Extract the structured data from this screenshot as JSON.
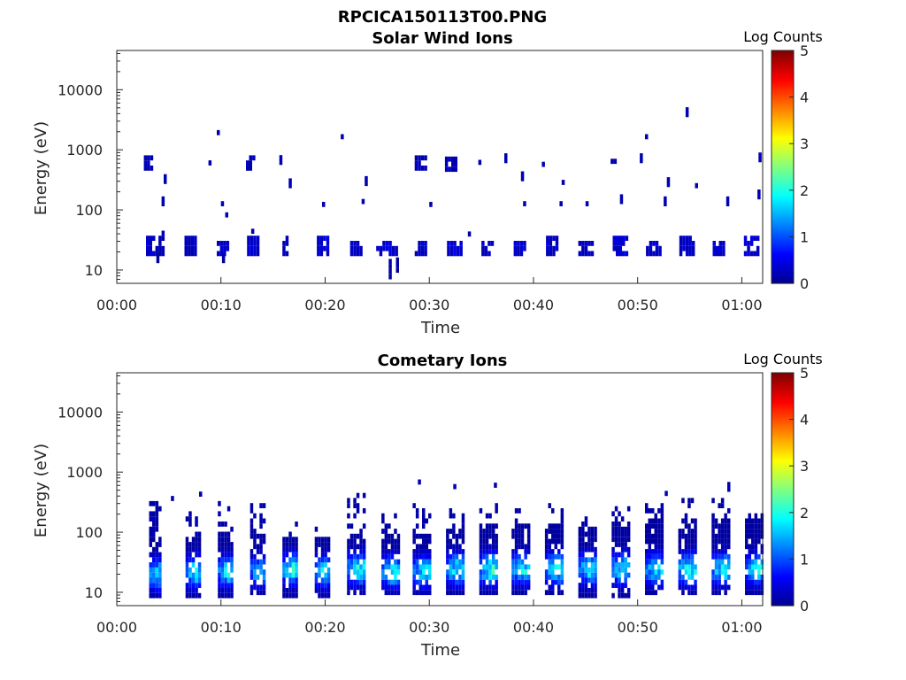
{
  "figure": {
    "title": "RPCICA150113T00.PNG"
  },
  "colorbar": {
    "colormap": "jet",
    "colors": [
      "#00008f",
      "#0000ff",
      "#0080ff",
      "#00ffff",
      "#80ff80",
      "#ffff00",
      "#ff8000",
      "#ff0000",
      "#800000"
    ]
  },
  "chart_data": [
    {
      "type": "heatmap",
      "title": "Solar Wind Ions",
      "xlabel": "Time",
      "ylabel": "Energy (eV)",
      "y_scale": "log",
      "xlim": [
        "00:00",
        "01:02"
      ],
      "ylim": [
        6,
        45000
      ],
      "x_ticks": [
        "00:00",
        "00:10",
        "00:20",
        "00:30",
        "00:40",
        "00:50",
        "01:00"
      ],
      "y_ticks": [
        "10",
        "100",
        "1000",
        "10000"
      ],
      "colorbar_label": "Log Counts",
      "colorbar_ticks": [
        "0",
        "1",
        "2",
        "3",
        "4",
        "5"
      ],
      "color_range": [
        0,
        5
      ],
      "patches": [
        {
          "t": 2.8,
          "dt": 0.9,
          "e_min": 17,
          "e_max": 32,
          "log_counts": 0.3
        },
        {
          "t": 4.0,
          "dt": 0.5,
          "e_min": 17,
          "e_max": 38,
          "log_counts": 0.2
        },
        {
          "t": 3.8,
          "dt": 0.3,
          "e_min": 13,
          "e_max": 17,
          "log_counts": 0.1
        },
        {
          "t": 6.5,
          "dt": 0.9,
          "e_min": 17,
          "e_max": 32,
          "log_counts": 0.25
        },
        {
          "t": 9.6,
          "dt": 1.0,
          "e_min": 17,
          "e_max": 30,
          "log_counts": 0.3
        },
        {
          "t": 10.1,
          "dt": 0.3,
          "e_min": 13,
          "e_max": 17,
          "log_counts": 0.1
        },
        {
          "t": 12.5,
          "dt": 1.2,
          "e_min": 17,
          "e_max": 32,
          "log_counts": 0.3
        },
        {
          "t": 15.9,
          "dt": 0.6,
          "e_min": 17,
          "e_max": 32,
          "log_counts": 0.25
        },
        {
          "t": 19.2,
          "dt": 1.2,
          "e_min": 17,
          "e_max": 32,
          "log_counts": 0.35
        },
        {
          "t": 22.4,
          "dt": 1.2,
          "e_min": 17,
          "e_max": 30,
          "log_counts": 0.3
        },
        {
          "t": 24.9,
          "dt": 1.9,
          "e_min": 17,
          "e_max": 30,
          "log_counts": 0.35
        },
        {
          "t": 26.1,
          "dt": 0.2,
          "e_min": 7,
          "e_max": 14,
          "log_counts": 0.1
        },
        {
          "t": 26.8,
          "dt": 0.2,
          "e_min": 9,
          "e_max": 14,
          "log_counts": 0.1
        },
        {
          "t": 28.6,
          "dt": 1.1,
          "e_min": 17,
          "e_max": 30,
          "log_counts": 0.3
        },
        {
          "t": 31.7,
          "dt": 1.2,
          "e_min": 17,
          "e_max": 30,
          "log_counts": 0.35
        },
        {
          "t": 35.0,
          "dt": 0.9,
          "e_min": 17,
          "e_max": 30,
          "log_counts": 0.3
        },
        {
          "t": 38.1,
          "dt": 1.1,
          "e_min": 17,
          "e_max": 30,
          "log_counts": 0.3
        },
        {
          "t": 41.2,
          "dt": 1.1,
          "e_min": 17,
          "e_max": 32,
          "log_counts": 0.3
        },
        {
          "t": 44.3,
          "dt": 1.2,
          "e_min": 17,
          "e_max": 30,
          "log_counts": 0.3
        },
        {
          "t": 47.6,
          "dt": 1.3,
          "e_min": 17,
          "e_max": 32,
          "log_counts": 0.35
        },
        {
          "t": 50.8,
          "dt": 1.2,
          "e_min": 17,
          "e_max": 30,
          "log_counts": 0.3
        },
        {
          "t": 54.0,
          "dt": 1.2,
          "e_min": 17,
          "e_max": 32,
          "log_counts": 0.3
        },
        {
          "t": 57.2,
          "dt": 1.1,
          "e_min": 17,
          "e_max": 30,
          "log_counts": 0.3
        },
        {
          "t": 60.2,
          "dt": 1.4,
          "e_min": 17,
          "e_max": 32,
          "log_counts": 0.35
        },
        {
          "t": 2.6,
          "dt": 0.8,
          "e_min": 450,
          "e_max": 700,
          "log_counts": 0.2
        },
        {
          "t": 12.4,
          "dt": 0.9,
          "e_min": 450,
          "e_max": 700,
          "log_counts": 0.2
        },
        {
          "t": 28.6,
          "dt": 1.0,
          "e_min": 450,
          "e_max": 800,
          "log_counts": 0.2
        },
        {
          "t": 31.5,
          "dt": 1.0,
          "e_min": 430,
          "e_max": 650,
          "log_counts": 0.2
        },
        {
          "t": 47.4,
          "dt": 0.5,
          "e_min": 480,
          "e_max": 650,
          "log_counts": 0.15
        }
      ],
      "sparse_points": [
        {
          "t": 9.6,
          "e": 1750,
          "log_counts": 0.2
        },
        {
          "t": 21.5,
          "e": 1500,
          "log_counts": 0.2
        },
        {
          "t": 50.7,
          "e": 1500,
          "log_counts": 0.2
        },
        {
          "t": 54.6,
          "e": 3500,
          "log_counts": 0.2
        },
        {
          "t": 4.5,
          "e": 270,
          "log_counts": 0.2
        },
        {
          "t": 16.5,
          "e": 230,
          "log_counts": 0.2
        },
        {
          "t": 23.8,
          "e": 250,
          "log_counts": 0.2
        },
        {
          "t": 38.8,
          "e": 300,
          "log_counts": 0.2
        },
        {
          "t": 42.7,
          "e": 260,
          "log_counts": 0.2
        },
        {
          "t": 52.8,
          "e": 240,
          "log_counts": 0.2
        },
        {
          "t": 55.5,
          "e": 230,
          "log_counts": 0.2
        },
        {
          "t": 4.3,
          "e": 115,
          "log_counts": 0.2
        },
        {
          "t": 10.0,
          "e": 115,
          "log_counts": 0.2
        },
        {
          "t": 19.7,
          "e": 112,
          "log_counts": 0.2
        },
        {
          "t": 23.5,
          "e": 125,
          "log_counts": 0.2
        },
        {
          "t": 30.0,
          "e": 112,
          "log_counts": 0.2
        },
        {
          "t": 39.0,
          "e": 115,
          "log_counts": 0.2
        },
        {
          "t": 42.5,
          "e": 115,
          "log_counts": 0.2
        },
        {
          "t": 45.0,
          "e": 115,
          "log_counts": 0.2
        },
        {
          "t": 48.3,
          "e": 125,
          "log_counts": 0.2
        },
        {
          "t": 52.5,
          "e": 115,
          "log_counts": 0.2
        },
        {
          "t": 58.5,
          "e": 115,
          "log_counts": 0.2
        },
        {
          "t": 61.5,
          "e": 150,
          "log_counts": 0.2
        },
        {
          "t": 61.6,
          "e": 620,
          "log_counts": 0.2
        },
        {
          "t": 8.8,
          "e": 550,
          "log_counts": 0.2
        },
        {
          "t": 15.6,
          "e": 560,
          "log_counts": 0.2
        },
        {
          "t": 34.7,
          "e": 560,
          "log_counts": 0.2
        },
        {
          "t": 37.2,
          "e": 600,
          "log_counts": 0.2
        },
        {
          "t": 40.8,
          "e": 520,
          "log_counts": 0.2
        },
        {
          "t": 50.2,
          "e": 600,
          "log_counts": 0.2
        },
        {
          "t": 10.4,
          "e": 75,
          "log_counts": 0.2
        },
        {
          "t": 12.9,
          "e": 40,
          "log_counts": 0.2
        },
        {
          "t": 33.7,
          "e": 36,
          "log_counts": 0.2
        }
      ]
    },
    {
      "type": "heatmap",
      "title": "Cometary Ions",
      "xlabel": "Time",
      "ylabel": "Energy (eV)",
      "y_scale": "log",
      "xlim": [
        "00:00",
        "01:02"
      ],
      "ylim": [
        6,
        45000
      ],
      "x_ticks": [
        "00:00",
        "00:10",
        "00:20",
        "00:30",
        "00:40",
        "00:50",
        "01:00"
      ],
      "y_ticks": [
        "10",
        "100",
        "1000",
        "10000"
      ],
      "colorbar_label": "Log Counts",
      "colorbar_ticks": [
        "0",
        "1",
        "2",
        "3",
        "4",
        "5"
      ],
      "color_range": [
        0,
        5
      ],
      "bursts": [
        {
          "t": 3.1,
          "width": 1.2,
          "e_min": 8,
          "e_max": 70,
          "e_top": 280,
          "peak_log_counts": 1.6,
          "peak_energy": 18
        },
        {
          "t": 6.6,
          "width": 1.2,
          "e_min": 8,
          "e_max": 80,
          "e_top": 260,
          "peak_log_counts": 1.7,
          "peak_energy": 20
        },
        {
          "t": 9.7,
          "width": 1.3,
          "e_min": 8,
          "e_max": 90,
          "e_top": 280,
          "peak_log_counts": 1.6,
          "peak_energy": 20
        },
        {
          "t": 12.8,
          "width": 1.3,
          "e_min": 9,
          "e_max": 90,
          "e_top": 300,
          "peak_log_counts": 1.5,
          "peak_energy": 20
        },
        {
          "t": 15.9,
          "width": 1.3,
          "e_min": 8,
          "e_max": 80,
          "e_top": 150,
          "peak_log_counts": 1.7,
          "peak_energy": 22
        },
        {
          "t": 19.0,
          "width": 1.3,
          "e_min": 8,
          "e_max": 70,
          "e_top": 120,
          "peak_log_counts": 1.6,
          "peak_energy": 20
        },
        {
          "t": 22.1,
          "width": 1.6,
          "e_min": 9,
          "e_max": 90,
          "e_top": 400,
          "peak_log_counts": 1.8,
          "peak_energy": 22
        },
        {
          "t": 25.4,
          "width": 1.6,
          "e_min": 9,
          "e_max": 90,
          "e_top": 200,
          "peak_log_counts": 1.7,
          "peak_energy": 20
        },
        {
          "t": 28.4,
          "width": 1.6,
          "e_min": 9,
          "e_max": 90,
          "e_top": 300,
          "peak_log_counts": 1.6,
          "peak_energy": 20
        },
        {
          "t": 31.6,
          "width": 1.6,
          "e_min": 9,
          "e_max": 100,
          "e_top": 250,
          "peak_log_counts": 1.7,
          "peak_energy": 22
        },
        {
          "t": 34.8,
          "width": 1.6,
          "e_min": 9,
          "e_max": 120,
          "e_top": 300,
          "peak_log_counts": 1.8,
          "peak_energy": 22
        },
        {
          "t": 37.9,
          "width": 1.6,
          "e_min": 9,
          "e_max": 120,
          "e_top": 250,
          "peak_log_counts": 1.6,
          "peak_energy": 22
        },
        {
          "t": 41.1,
          "width": 1.6,
          "e_min": 9,
          "e_max": 130,
          "e_top": 350,
          "peak_log_counts": 1.7,
          "peak_energy": 22
        },
        {
          "t": 44.3,
          "width": 1.6,
          "e_min": 8,
          "e_max": 120,
          "e_top": 200,
          "peak_log_counts": 1.6,
          "peak_energy": 22
        },
        {
          "t": 47.5,
          "width": 1.6,
          "e_min": 8,
          "e_max": 130,
          "e_top": 250,
          "peak_log_counts": 1.7,
          "peak_energy": 22
        },
        {
          "t": 50.7,
          "width": 1.6,
          "e_min": 9,
          "e_max": 140,
          "e_top": 350,
          "peak_log_counts": 1.6,
          "peak_energy": 22
        },
        {
          "t": 53.9,
          "width": 1.6,
          "e_min": 9,
          "e_max": 140,
          "e_top": 400,
          "peak_log_counts": 1.8,
          "peak_energy": 22
        },
        {
          "t": 57.1,
          "width": 1.6,
          "e_min": 9,
          "e_max": 140,
          "e_top": 400,
          "peak_log_counts": 1.7,
          "peak_energy": 22
        },
        {
          "t": 60.3,
          "width": 1.6,
          "e_min": 9,
          "e_max": 140,
          "e_top": 200,
          "peak_log_counts": 1.7,
          "peak_energy": 22
        }
      ],
      "sparse_points": [
        {
          "t": 5.2,
          "e": 330,
          "log_counts": 0.2
        },
        {
          "t": 7.9,
          "e": 390,
          "log_counts": 0.2
        },
        {
          "t": 28.9,
          "e": 620,
          "log_counts": 0.2
        },
        {
          "t": 32.3,
          "e": 520,
          "log_counts": 0.2
        },
        {
          "t": 36.2,
          "e": 550,
          "log_counts": 0.2
        },
        {
          "t": 52.6,
          "e": 400,
          "log_counts": 0.2
        },
        {
          "t": 58.6,
          "e": 470,
          "log_counts": 0.2
        }
      ]
    }
  ]
}
